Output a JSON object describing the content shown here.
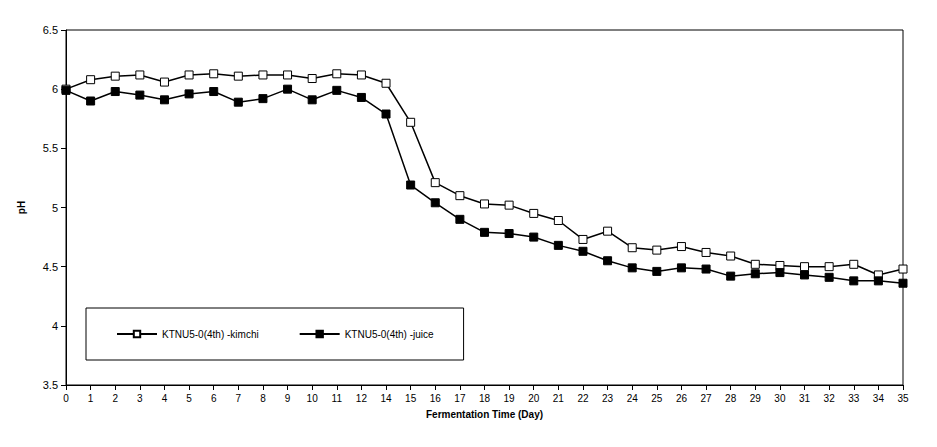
{
  "chart_data": {
    "type": "line",
    "x_label": "Fermentation Time (Day)",
    "y_label": "pH",
    "categories": [
      0,
      1,
      2,
      3,
      4,
      5,
      6,
      7,
      8,
      9,
      10,
      11,
      12,
      14,
      15,
      16,
      17,
      18,
      19,
      20,
      21,
      22,
      23,
      24,
      25,
      26,
      27,
      28,
      29,
      30,
      31,
      32,
      33,
      34,
      35
    ],
    "series": [
      {
        "name": "KTNU5-0(4th) -kimchi",
        "color": "#000000",
        "marker": "square_open",
        "values": [
          6.0,
          6.08,
          6.11,
          6.12,
          6.06,
          6.12,
          6.13,
          6.11,
          6.12,
          6.12,
          6.09,
          6.13,
          6.12,
          6.05,
          5.72,
          5.21,
          5.1,
          5.03,
          5.02,
          4.95,
          4.89,
          4.73,
          4.8,
          4.66,
          4.64,
          4.67,
          4.62,
          4.59,
          4.52,
          4.51,
          4.5,
          4.5,
          4.52,
          4.43,
          4.48
        ]
      },
      {
        "name": "KTNU5-0(4th) -juice",
        "color": "#000000",
        "marker": "square",
        "values": [
          5.99,
          5.9,
          5.98,
          5.95,
          5.91,
          5.96,
          5.98,
          5.89,
          5.92,
          6.0,
          5.91,
          5.99,
          5.93,
          5.79,
          5.19,
          5.04,
          4.9,
          4.79,
          4.78,
          4.75,
          4.68,
          4.63,
          4.55,
          4.49,
          4.46,
          4.49,
          4.48,
          4.42,
          4.44,
          4.45,
          4.43,
          4.41,
          4.38,
          4.38,
          4.36
        ]
      }
    ],
    "ylim": [
      3.5,
      6.5
    ],
    "yticks": [
      3.5,
      4,
      4.5,
      5,
      5.5,
      6,
      6.5
    ],
    "grid": false,
    "legend": "bottom-left"
  }
}
